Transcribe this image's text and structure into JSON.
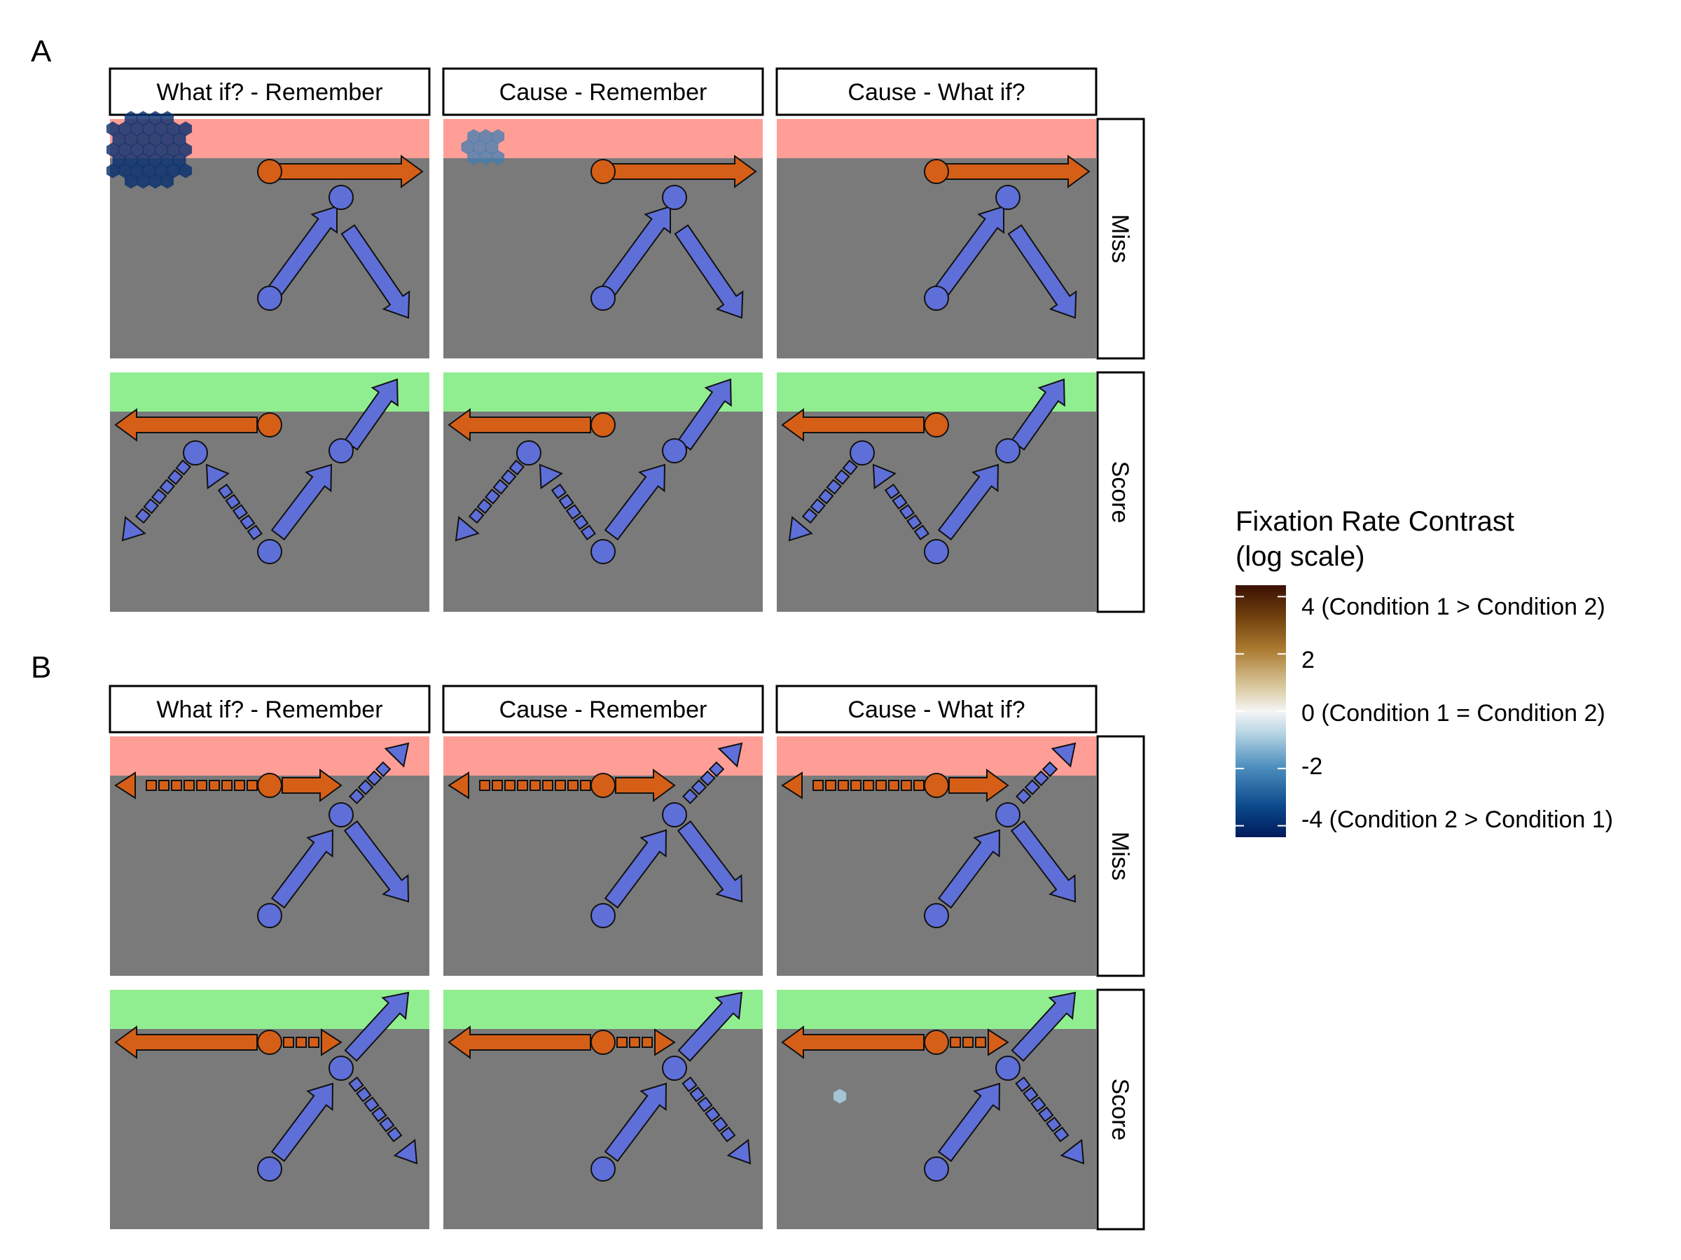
{
  "panels": [
    {
      "letter": "A",
      "columns": [
        "What if? - Remember",
        "Cause - Remember",
        "Cause - What if?"
      ],
      "rows": [
        "Miss",
        "Score"
      ],
      "hotspots": [
        {
          "row": 0,
          "col": 0,
          "level": -3.8,
          "label": "strong negative cluster near top-left"
        },
        {
          "row": 0,
          "col": 1,
          "level": -2.0,
          "label": "moderate negative cluster near top-left"
        }
      ]
    },
    {
      "letter": "B",
      "columns": [
        "What if? - Remember",
        "Cause - Remember",
        "Cause - What if?"
      ],
      "rows": [
        "Miss",
        "Score"
      ],
      "hotspots": [
        {
          "row": 1,
          "col": 2,
          "level": -1.0,
          "label": "single weak negative cell"
        }
      ]
    }
  ],
  "colors": {
    "field": "#7a7a7a",
    "miss_zone": "#ff9e96",
    "score_zone": "#90ee90",
    "orange": "#d65f18",
    "blue": "#5f6fd8",
    "strip_bg": "#ffffff"
  },
  "legend": {
    "title_line1": "Fixation Rate Contrast",
    "title_line2": "(log scale)",
    "labels": [
      "4 (Condition 1 > Condition 2)",
      "2",
      "0 (Condition 1 = Condition 2)",
      "-2",
      "-4 (Condition 2 > Condition 1)"
    ],
    "range": [
      -4.4,
      4.4
    ],
    "stops": [
      "#001a5c",
      "#0c4a8c",
      "#4e8fbe",
      "#bcd8e6",
      "#f5f5f5",
      "#d9c79c",
      "#a9782e",
      "#6e3f0d",
      "#3c1003"
    ]
  }
}
